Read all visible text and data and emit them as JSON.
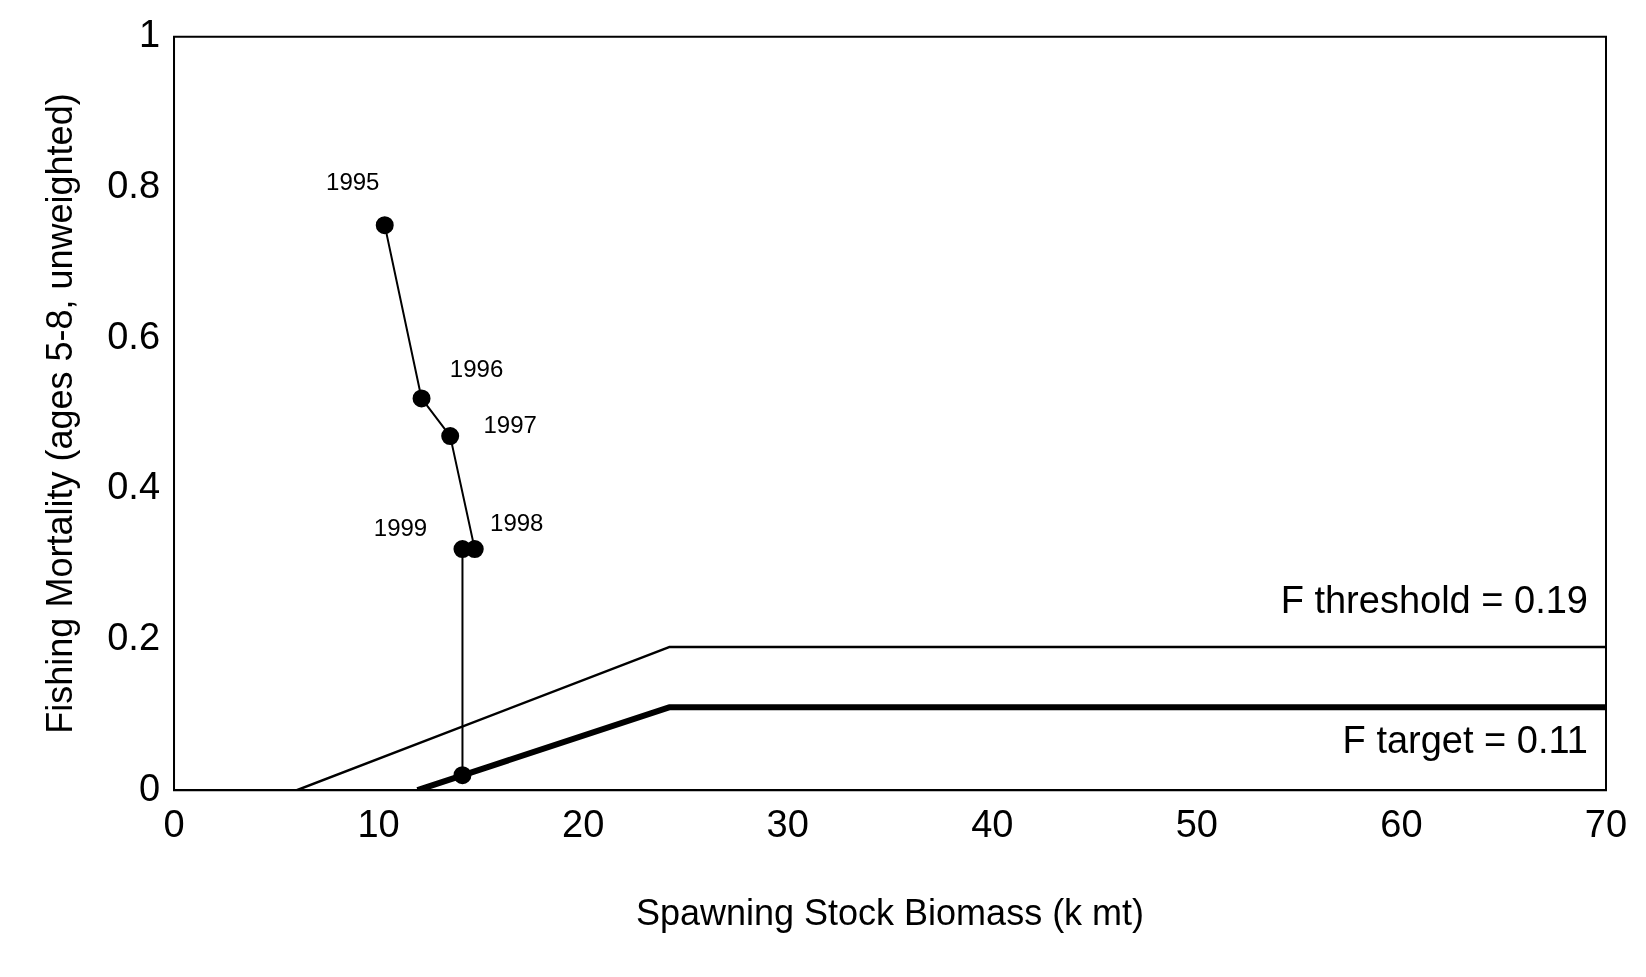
{
  "chart_data": {
    "type": "line",
    "xlabel": "Spawning Stock Biomass (k mt)",
    "ylabel": "Fishing Mortality (ages 5-8, unweighted)",
    "xlim": [
      0,
      70
    ],
    "xticks": [
      0,
      10,
      20,
      30,
      40,
      50,
      60,
      70
    ],
    "ylim": [
      0,
      1
    ],
    "yticks": [
      0,
      {
        "value": 0.2,
        "label": "0.2"
      },
      {
        "value": 0.4,
        "label": "0.4"
      },
      {
        "value": 0.6,
        "label": "0.6"
      },
      {
        "value": 0.8,
        "label": "0.8"
      },
      1
    ],
    "grid": false,
    "legend": false,
    "series": [
      {
        "color": "#000000",
        "x": [
          10.3,
          12.1,
          13.5,
          14.7,
          14.1,
          14.1
        ],
        "values": [
          0.75,
          0.52,
          0.47,
          0.32,
          0.32,
          0.02
        ],
        "marker": "circle"
      },
      {
        "name": "F threshold = 0.19",
        "color": "#000000",
        "x": [
          0.8,
          6,
          24.2,
          70
        ],
        "values": [
          0,
          0,
          0.19,
          0.19
        ],
        "marker": "none"
      },
      {
        "name": "F target = 0.11",
        "color": "#000000",
        "x": [
          11.9,
          24.2,
          70
        ],
        "values": [
          0,
          0.11,
          0.11
        ],
        "marker": "none"
      }
    ],
    "annotations": [
      {
        "text": "1995",
        "x": 10.3,
        "y": 0.75
      },
      {
        "text": "1996",
        "x": 12.1,
        "y": 0.52
      },
      {
        "text": "1997",
        "x": 13.5,
        "y": 0.47
      },
      {
        "text": "1998",
        "x": 14.7,
        "y": 0.32
      },
      {
        "text": "1999",
        "x": 14.1,
        "y": 0.32
      }
    ]
  }
}
